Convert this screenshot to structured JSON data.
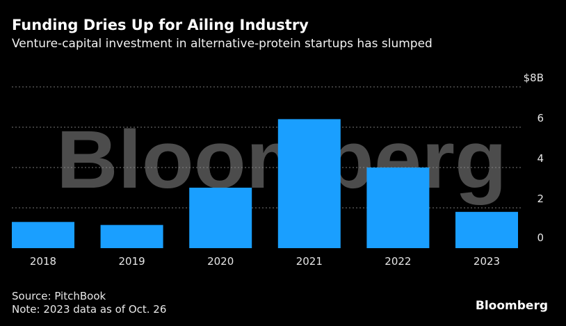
{
  "header": {
    "title": "Funding Dries Up for Ailing Industry",
    "subtitle": "Venture-capital investment in alternative-protein startups has slumped"
  },
  "footer": {
    "source": "Source: PitchBook",
    "note": "Note: 2023 data as of Oct. 26",
    "brand": "Bloomberg"
  },
  "watermark": "Bloomberg",
  "colors": {
    "background": "#000000",
    "bar": "#1a9fff",
    "gridline": "#7a7a7a",
    "text": "#ffffff"
  },
  "chart_data": {
    "type": "bar",
    "title": "Funding Dries Up for Ailing Industry",
    "subtitle": "Venture-capital investment in alternative-protein startups has slumped",
    "categories": [
      "2018",
      "2019",
      "2020",
      "2021",
      "2022",
      "2023"
    ],
    "values": [
      1.3,
      1.15,
      3.0,
      6.4,
      4.0,
      1.8
    ],
    "ylabel": "",
    "xlabel": "",
    "ylim": [
      0,
      8
    ],
    "yticks": [
      0,
      2,
      4,
      6,
      8
    ],
    "ytick_labels": [
      "0",
      "2",
      "4",
      "6",
      "$8B"
    ],
    "grid": true,
    "y_axis_side": "right"
  }
}
